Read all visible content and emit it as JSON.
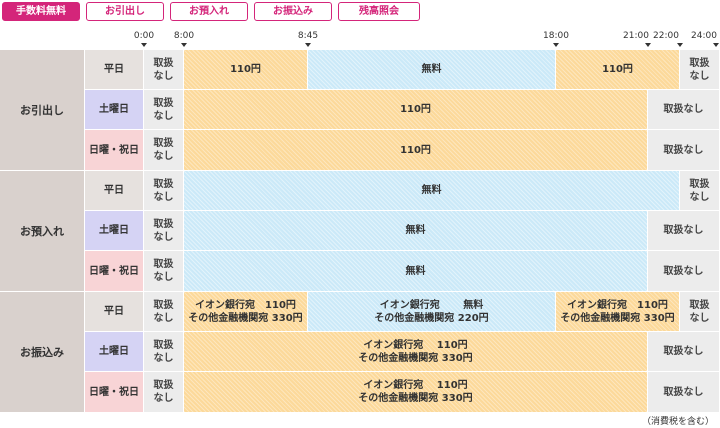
{
  "tabs": [
    {
      "label": "手数料無料",
      "active": true
    },
    {
      "label": "お引出し",
      "active": false
    },
    {
      "label": "お預入れ",
      "active": false
    },
    {
      "label": "お振込み",
      "active": false
    },
    {
      "label": "残高照会",
      "active": false
    }
  ],
  "timeline": {
    "ticks": [
      "0:00",
      "8:00",
      "8:45",
      "18:00",
      "21:00",
      "22:00",
      "24:00"
    ]
  },
  "groups": [
    {
      "label": "お引出し"
    },
    {
      "label": "お預入れ"
    },
    {
      "label": "お振込み"
    }
  ],
  "days": {
    "weekday": "平日",
    "saturday": "土曜日",
    "holiday": "日曜・祝日"
  },
  "text": {
    "not_handled_stack": "取扱\nなし",
    "not_handled": "取扱なし",
    "fee_110": "110円",
    "free": "無料",
    "aeon_110_line1": "イオン銀行宛　110円",
    "other_330_line2": "その他金融機関宛 330円",
    "aeon_free_line1": "イオン銀行宛　　 無料",
    "other_220_line2": "その他金融機関宛 220円",
    "aeon_110_center1": "イオン銀行宛　 110円",
    "other_330_center2": "その他金融機関宛 330円"
  },
  "footnote": "（消費税を含む）",
  "colors": {
    "accent": "#d4257a",
    "paid": "#fcd99a",
    "free": "#cbe9f8",
    "na": "#ececec"
  }
}
